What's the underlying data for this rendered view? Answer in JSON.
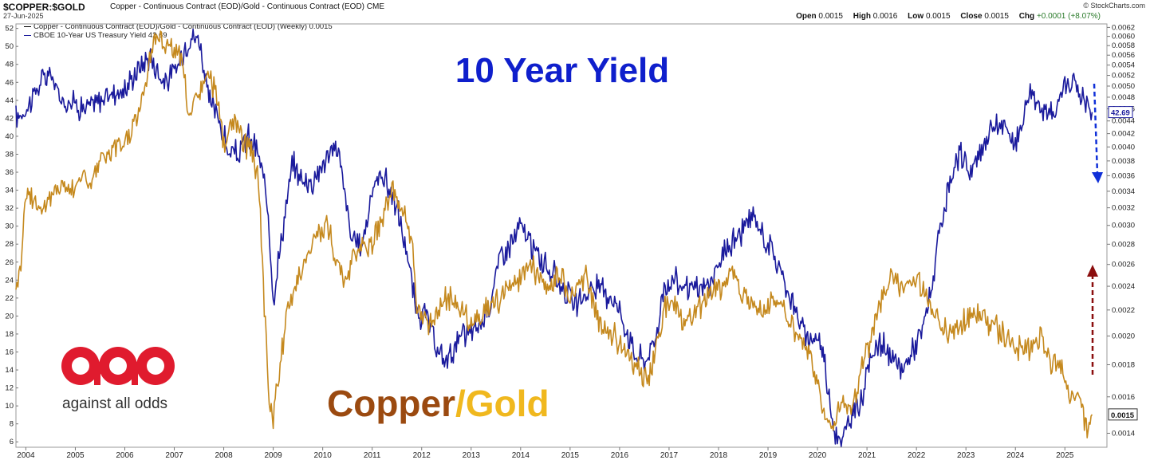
{
  "header": {
    "symbol": "$COPPER:$GOLD",
    "symbol_desc": "Copper - Continuous Contract (EOD)/Gold - Continuous Contract (EOD) CME",
    "date": "27-Jun-2025",
    "brand": "© StockCharts.com",
    "open_label": "Open",
    "open": "0.0015",
    "high_label": "High",
    "high": "0.0016",
    "low_label": "Low",
    "low": "0.0015",
    "close_label": "Close",
    "close": "0.0015",
    "chg_label": "Chg",
    "chg": "+0.0001 (+8.07%)",
    "chg_color": "#2a7b2a"
  },
  "legend": {
    "items": [
      {
        "label": "Copper - Continuous Contract (EOD)/Gold - Continuous Contract (EOD) (Weekly) 0.0015",
        "color": "#000000"
      },
      {
        "label": "CBOE 10-Year US Treasury Yield 42.69",
        "color": "#1a1a9c"
      }
    ]
  },
  "annotations": {
    "yield_title": "10 Year Yield",
    "yield_title_color": "#0f1fcc",
    "copper_word": "Copper",
    "copper_color": "#9b4a10",
    "gold_word": "/Gold",
    "gold_color": "#f0b81e",
    "blue_arrow_color": "#1030d8",
    "red_arrow_color": "#8b0e0e"
  },
  "logo": {
    "text": "against all odds",
    "color": "#e01b2e"
  },
  "chart_data": {
    "type": "line",
    "x_unit": "year",
    "xlim": [
      2003.8,
      2025.85
    ],
    "x_ticks": [
      "2004",
      "2005",
      "2006",
      "2007",
      "2008",
      "2009",
      "2010",
      "2011",
      "2012",
      "2013",
      "2014",
      "2015",
      "2016",
      "2017",
      "2018",
      "2019",
      "2020",
      "2021",
      "2022",
      "2023",
      "2024",
      "2025"
    ],
    "left_axis": {
      "label": "",
      "ticks": [
        6,
        8,
        10,
        12,
        14,
        16,
        18,
        20,
        22,
        24,
        26,
        28,
        30,
        32,
        34,
        36,
        38,
        40,
        42,
        44,
        46,
        48,
        50,
        52
      ],
      "ylim": [
        5.4,
        52.5
      ]
    },
    "right_axis": {
      "label": "",
      "scale": "log",
      "ticks": [
        "0.0014",
        "0.0016",
        "0.0018",
        "0.0020",
        "0.0022",
        "0.0024",
        "0.0026",
        "0.0028",
        "0.0030",
        "0.0032",
        "0.0034",
        "0.0036",
        "0.0038",
        "0.0040",
        "0.0042",
        "0.0044",
        "0.0046",
        "0.0048",
        "0.0050",
        "0.0052",
        "0.0054",
        "0.0056",
        "0.0058",
        "0.0060",
        "0.0062"
      ],
      "ylim": [
        0.00133,
        0.00628
      ],
      "last_value_label": "0.0015",
      "secondary_last_label": "42.69"
    },
    "grid": false,
    "series": [
      {
        "name": "CBOE 10-Year US Treasury Yield 42.69",
        "axis": "left",
        "color": "#1a1a9c",
        "x": [
          2003.8,
          2004.0,
          2004.3,
          2004.5,
          2004.7,
          2004.9,
          2005.2,
          2005.5,
          2005.8,
          2006.0,
          2006.2,
          2006.5,
          2006.8,
          2007.0,
          2007.3,
          2007.5,
          2007.7,
          2007.9,
          2008.1,
          2008.3,
          2008.5,
          2008.7,
          2008.9,
          2009.0,
          2009.2,
          2009.4,
          2009.6,
          2009.8,
          2010.0,
          2010.3,
          2010.6,
          2010.8,
          2011.0,
          2011.2,
          2011.5,
          2011.7,
          2011.9,
          2012.1,
          2012.3,
          2012.5,
          2012.7,
          2012.9,
          2013.2,
          2013.4,
          2013.6,
          2013.8,
          2014.0,
          2014.3,
          2014.6,
          2014.9,
          2015.1,
          2015.4,
          2015.6,
          2015.9,
          2016.1,
          2016.3,
          2016.5,
          2016.7,
          2016.9,
          2017.1,
          2017.4,
          2017.7,
          2017.9,
          2018.1,
          2018.4,
          2018.7,
          2018.9,
          2019.1,
          2019.4,
          2019.6,
          2019.8,
          2020.0,
          2020.15,
          2020.3,
          2020.5,
          2020.7,
          2020.9,
          2021.1,
          2021.3,
          2021.5,
          2021.7,
          2021.9,
          2022.1,
          2022.3,
          2022.5,
          2022.7,
          2022.9,
          2023.1,
          2023.3,
          2023.5,
          2023.8,
          2024.0,
          2024.3,
          2024.6,
          2024.8,
          2025.0,
          2025.2,
          2025.4,
          2025.55
        ],
        "y": [
          42,
          43,
          46,
          47,
          44,
          44,
          43,
          44,
          45,
          45,
          47,
          49,
          46,
          47,
          51,
          51,
          44,
          42,
          38,
          38,
          40,
          38,
          32,
          22,
          30,
          37,
          35,
          35,
          37,
          39,
          28,
          28,
          34,
          36,
          32,
          27,
          20,
          20,
          16,
          15,
          17,
          18,
          19,
          22,
          27,
          28,
          30,
          27,
          25,
          23,
          21,
          23,
          23,
          22,
          19,
          16,
          15,
          17,
          23,
          24,
          23,
          23,
          24,
          27,
          29,
          31,
          29,
          27,
          23,
          20,
          17,
          18,
          15,
          8,
          6,
          9,
          11,
          16,
          17,
          15,
          14,
          16,
          18,
          23,
          30,
          35,
          38,
          36,
          38,
          41,
          41,
          39,
          45,
          43,
          42,
          46,
          46,
          44,
          42.69
        ]
      },
      {
        "name": "Copper - Continuous Contract (EOD)/Gold - Continuous Contract (EOD) (Weekly) 0.0015",
        "axis": "right",
        "color": "#c5891e",
        "x": [
          2003.8,
          2003.9,
          2004.0,
          2004.15,
          2004.3,
          2004.5,
          2004.7,
          2004.9,
          2005.1,
          2005.3,
          2005.5,
          2005.7,
          2005.9,
          2006.1,
          2006.3,
          2006.4,
          2006.6,
          2006.8,
          2006.9,
          2007.1,
          2007.2,
          2007.3,
          2007.5,
          2007.7,
          2007.9,
          2008.0,
          2008.2,
          2008.3,
          2008.5,
          2008.7,
          2008.8,
          2008.9,
          2009.0,
          2009.1,
          2009.3,
          2009.5,
          2009.7,
          2009.9,
          2010.1,
          2010.3,
          2010.5,
          2010.6,
          2010.8,
          2011.0,
          2011.2,
          2011.4,
          2011.6,
          2011.8,
          2011.9,
          2012.2,
          2012.5,
          2012.8,
          2013.0,
          2013.3,
          2013.6,
          2013.9,
          2014.2,
          2014.5,
          2014.8,
          2015.0,
          2015.3,
          2015.6,
          2015.9,
          2016.1,
          2016.3,
          2016.6,
          2016.9,
          2017.1,
          2017.3,
          2017.6,
          2017.9,
          2018.1,
          2018.3,
          2018.6,
          2018.9,
          2019.1,
          2019.3,
          2019.6,
          2019.9,
          2020.0,
          2020.15,
          2020.3,
          2020.5,
          2020.7,
          2020.9,
          2021.1,
          2021.3,
          2021.5,
          2021.7,
          2021.9,
          2022.1,
          2022.3,
          2022.5,
          2022.7,
          2022.9,
          2023.2,
          2023.5,
          2023.8,
          2024.1,
          2024.3,
          2024.5,
          2024.7,
          2024.9,
          2025.1,
          2025.3,
          2025.45,
          2025.55
        ],
        "y": [
          0.0024,
          0.0026,
          0.0034,
          0.0033,
          0.0032,
          0.0033,
          0.0035,
          0.0034,
          0.0036,
          0.0035,
          0.0038,
          0.0039,
          0.004,
          0.0042,
          0.0046,
          0.005,
          0.006,
          0.0059,
          0.0058,
          0.0056,
          0.0052,
          0.0044,
          0.0049,
          0.0052,
          0.0047,
          0.004,
          0.0044,
          0.0042,
          0.004,
          0.0036,
          0.0024,
          0.0016,
          0.0015,
          0.0017,
          0.0022,
          0.0025,
          0.0027,
          0.0029,
          0.003,
          0.0026,
          0.0024,
          0.0027,
          0.0028,
          0.0028,
          0.0031,
          0.0034,
          0.0032,
          0.0028,
          0.0022,
          0.0021,
          0.0023,
          0.0022,
          0.0021,
          0.0022,
          0.0023,
          0.0024,
          0.0026,
          0.0024,
          0.0025,
          0.0023,
          0.0025,
          0.0021,
          0.002,
          0.0019,
          0.0018,
          0.0017,
          0.0022,
          0.0023,
          0.0021,
          0.0022,
          0.0024,
          0.0024,
          0.0025,
          0.0023,
          0.0022,
          0.0023,
          0.0022,
          0.002,
          0.0018,
          0.0017,
          0.0015,
          0.0014,
          0.0016,
          0.0015,
          0.0018,
          0.002,
          0.0023,
          0.0025,
          0.0024,
          0.0025,
          0.0024,
          0.0022,
          0.0021,
          0.002,
          0.0021,
          0.0022,
          0.0021,
          0.002,
          0.0019,
          0.0019,
          0.002,
          0.0018,
          0.0018,
          0.0016,
          0.0016,
          0.0014,
          0.0015
        ]
      }
    ]
  }
}
